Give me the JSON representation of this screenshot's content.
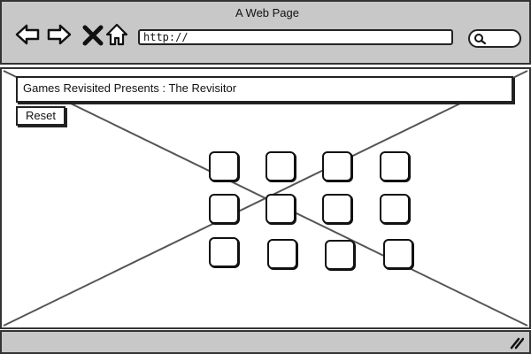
{
  "window": {
    "title": "A Web Page"
  },
  "toolbar": {
    "back_icon": "back-arrow-icon",
    "forward_icon": "forward-arrow-icon",
    "stop_icon": "close-x-icon",
    "home_icon": "home-icon",
    "url": "http://",
    "search_icon": "search-icon"
  },
  "page": {
    "banner_text": "Games Revisited Presents : The Revisitor",
    "reset_label": "Reset",
    "grid": {
      "rows": 3,
      "columns": 4
    }
  },
  "statusbar": {
    "resize_icon": "resize-grip-icon"
  },
  "colors": {
    "chrome": "#c8c8c8",
    "stroke": "#222222",
    "background": "#ffffff"
  }
}
